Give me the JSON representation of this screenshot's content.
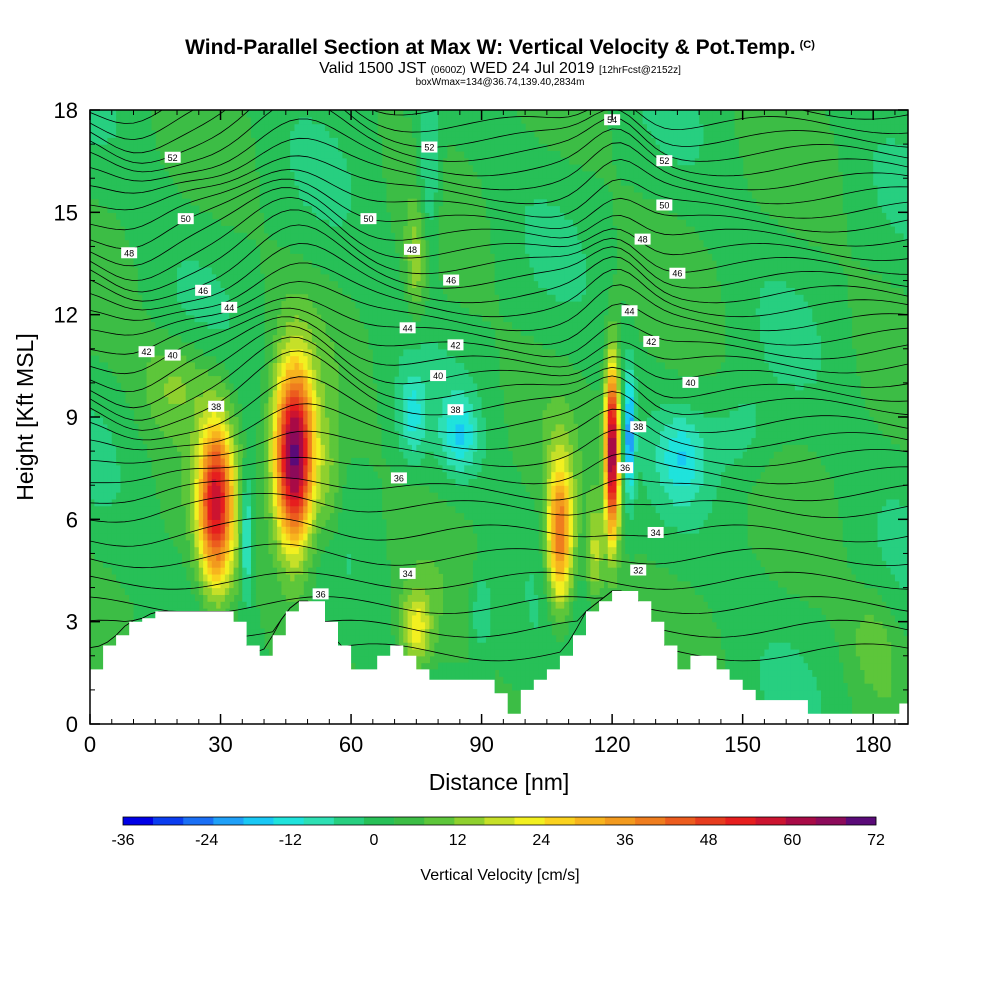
{
  "title": "Wind-Parallel Section at Max W: Vertical Velocity & Pot.Temp.",
  "title_mark": "(C)",
  "subtitle_main": "Valid 1500 JST",
  "subtitle_utc": "(0600Z)",
  "subtitle_date": "WED 24 Jul 2019",
  "subtitle_fcst": "[12hrFcst@2152z]",
  "subtitle2": "boxWmax=134@36.74,139.40,2834m",
  "colors": {
    "background_field": "#3cbd45",
    "terrain": "#ffffff"
  },
  "chart_data": {
    "type": "heatmap",
    "xlabel": "Distance [nm]",
    "ylabel": "Height [Kft MSL]",
    "xlim": [
      0,
      188
    ],
    "ylim": [
      0,
      18
    ],
    "xticks": [
      "0",
      "30",
      "60",
      "90",
      "120",
      "150",
      "180"
    ],
    "yticks": [
      "0",
      "3",
      "6",
      "9",
      "12",
      "15",
      "18"
    ],
    "colorbar": {
      "label": "Vertical Velocity [cm/s]",
      "range": [
        -36,
        72
      ],
      "tick_labels": [
        "-36",
        "-24",
        "-12",
        "0",
        "12",
        "24",
        "36",
        "48",
        "60",
        "72"
      ],
      "colors": [
        "#0000e6",
        "#0a3df0",
        "#1a6ff5",
        "#1fa0f8",
        "#19c8f5",
        "#1fe3dc",
        "#2de0b4",
        "#27cf80",
        "#27c057",
        "#3cbd45",
        "#5dc63a",
        "#8fd02e",
        "#c6e028",
        "#f2f020",
        "#fad21e",
        "#f7b41e",
        "#f29a1e",
        "#ef7d1e",
        "#ec5c1e",
        "#e63c1e",
        "#e61e1e",
        "#cc1430",
        "#a80a46",
        "#8c0a5a",
        "#5a0a78"
      ]
    },
    "terrain_profile": {
      "distance": [
        0,
        3,
        6,
        9,
        12,
        15,
        18,
        21,
        24,
        27,
        30,
        33,
        36,
        39,
        42,
        45,
        48,
        51,
        54,
        57,
        60,
        63,
        66,
        69,
        72,
        75,
        78,
        81,
        84,
        87,
        90,
        93,
        96,
        99,
        102,
        105,
        108,
        111,
        114,
        117,
        120,
        123,
        126,
        129,
        132,
        135,
        138,
        141,
        144,
        147,
        150,
        153,
        156,
        159,
        162,
        165,
        168,
        171,
        174,
        177,
        180,
        183,
        186,
        188
      ],
      "height": [
        1.6,
        2.3,
        2.6,
        3.0,
        3.1,
        3.3,
        3.3,
        3.3,
        3.3,
        3.3,
        3.3,
        3.0,
        2.3,
        2.0,
        2.6,
        3.3,
        3.6,
        3.6,
        3.0,
        2.3,
        1.6,
        1.6,
        2.0,
        2.3,
        2.0,
        1.6,
        1.3,
        1.3,
        1.3,
        1.3,
        1.3,
        0.9,
        0.3,
        1.0,
        1.3,
        1.6,
        2.0,
        2.6,
        3.3,
        3.6,
        3.9,
        3.9,
        3.6,
        3.0,
        2.3,
        1.6,
        2.0,
        2.0,
        1.6,
        1.3,
        1.0,
        0.7,
        0.7,
        0.7,
        0.7,
        0.3,
        0.3,
        0.3,
        0.3,
        0.3,
        0.3,
        0.3,
        0.6,
        0.6
      ]
    },
    "w_features": [
      {
        "x": 29,
        "y": 6.5,
        "sx": 4,
        "sy": 2.4,
        "w": 52
      },
      {
        "x": 36,
        "y": 5.5,
        "sx": 1.3,
        "sy": 1.8,
        "w": -18
      },
      {
        "x": 47,
        "y": 7.8,
        "sx": 4.5,
        "sy": 2.6,
        "w": 70
      },
      {
        "x": 55,
        "y": 7,
        "sx": 3,
        "sy": 2,
        "w": 10
      },
      {
        "x": 74,
        "y": 9,
        "sx": 3,
        "sy": 1.2,
        "w": -12
      },
      {
        "x": 85,
        "y": 8.5,
        "sx": 4,
        "sy": 1.1,
        "w": -14
      },
      {
        "x": 75,
        "y": 2.8,
        "sx": 3.5,
        "sy": 1.1,
        "w": 20
      },
      {
        "x": 90,
        "y": 3.3,
        "sx": 2.5,
        "sy": 1.2,
        "w": -10
      },
      {
        "x": 108,
        "y": 5.5,
        "sx": 3,
        "sy": 2.2,
        "w": 40
      },
      {
        "x": 116,
        "y": 5,
        "sx": 2,
        "sy": 1.5,
        "w": 15
      },
      {
        "x": 120,
        "y": 8,
        "sx": 1.6,
        "sy": 2.5,
        "w": 65
      },
      {
        "x": 124,
        "y": 8.5,
        "sx": 1.2,
        "sy": 1.8,
        "w": -24
      },
      {
        "x": 136,
        "y": 7.8,
        "sx": 5,
        "sy": 1.2,
        "w": -12
      },
      {
        "x": 150,
        "y": 8.5,
        "sx": 8,
        "sy": 1.5,
        "w": -6
      },
      {
        "x": 78,
        "y": 16,
        "sx": 2.5,
        "sy": 2.5,
        "w": -12
      },
      {
        "x": 75,
        "y": 13.5,
        "sx": 2.5,
        "sy": 1.5,
        "w": 12
      },
      {
        "x": 20,
        "y": 10,
        "sx": 8,
        "sy": 1.4,
        "w": 10
      },
      {
        "x": 180,
        "y": 2.5,
        "sx": 6,
        "sy": 1.5,
        "w": 6
      }
    ],
    "theta_contours": [
      {
        "value": 32,
        "label": "32"
      },
      {
        "value": 34,
        "label": "34"
      },
      {
        "value": 36,
        "label": "36"
      },
      {
        "value": 38,
        "label": "38"
      },
      {
        "value": 40,
        "label": "40"
      },
      {
        "value": 42,
        "label": "42"
      },
      {
        "value": 44,
        "label": "44"
      },
      {
        "value": 46,
        "label": "46"
      },
      {
        "value": 48,
        "label": "48"
      },
      {
        "value": 50,
        "label": "50"
      },
      {
        "value": 52,
        "label": "52"
      },
      {
        "value": 54,
        "label": "54"
      }
    ],
    "contour_labels": [
      {
        "x": 29,
        "y": 9.3,
        "text": "38"
      },
      {
        "x": 13,
        "y": 10.9,
        "text": "42"
      },
      {
        "x": 19,
        "y": 10.8,
        "text": "40"
      },
      {
        "x": 32,
        "y": 12.2,
        "text": "44"
      },
      {
        "x": 26,
        "y": 12.7,
        "text": "46"
      },
      {
        "x": 9,
        "y": 13.8,
        "text": "48"
      },
      {
        "x": 22,
        "y": 14.8,
        "text": "50"
      },
      {
        "x": 19,
        "y": 16.6,
        "text": "52"
      },
      {
        "x": 64,
        "y": 14.8,
        "text": "50"
      },
      {
        "x": 78,
        "y": 16.9,
        "text": "52"
      },
      {
        "x": 74,
        "y": 13.9,
        "text": "48"
      },
      {
        "x": 83,
        "y": 13.0,
        "text": "46"
      },
      {
        "x": 73,
        "y": 11.6,
        "text": "44"
      },
      {
        "x": 84,
        "y": 11.1,
        "text": "42"
      },
      {
        "x": 80,
        "y": 10.2,
        "text": "40"
      },
      {
        "x": 84,
        "y": 9.2,
        "text": "38"
      },
      {
        "x": 71,
        "y": 7.2,
        "text": "36"
      },
      {
        "x": 73,
        "y": 4.4,
        "text": "34"
      },
      {
        "x": 53,
        "y": 3.8,
        "text": "36"
      },
      {
        "x": 120,
        "y": 17.7,
        "text": "54"
      },
      {
        "x": 132,
        "y": 16.5,
        "text": "52"
      },
      {
        "x": 132,
        "y": 15.2,
        "text": "50"
      },
      {
        "x": 127,
        "y": 14.2,
        "text": "48"
      },
      {
        "x": 135,
        "y": 13.2,
        "text": "46"
      },
      {
        "x": 124,
        "y": 12.1,
        "text": "44"
      },
      {
        "x": 129,
        "y": 11.2,
        "text": "42"
      },
      {
        "x": 138,
        "y": 10.0,
        "text": "40"
      },
      {
        "x": 126,
        "y": 8.7,
        "text": "38"
      },
      {
        "x": 123,
        "y": 7.5,
        "text": "36"
      },
      {
        "x": 130,
        "y": 5.6,
        "text": "34"
      },
      {
        "x": 126,
        "y": 4.5,
        "text": "32"
      }
    ]
  }
}
